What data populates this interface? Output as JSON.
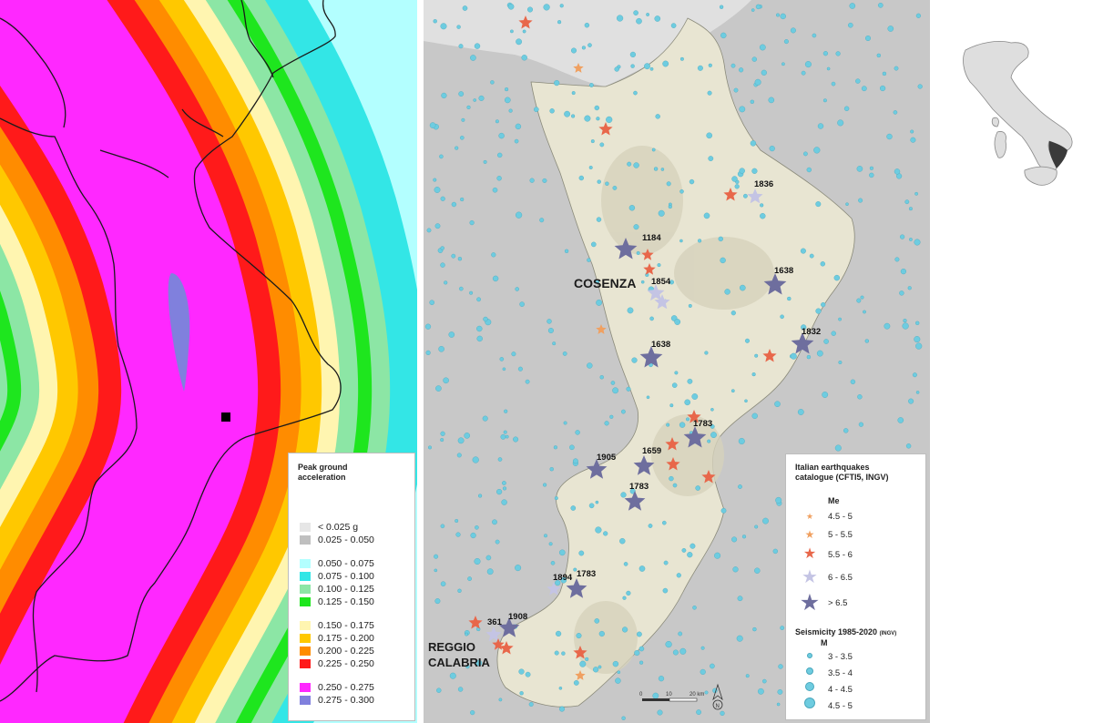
{
  "hazard_map": {
    "legend": {
      "title_line1": "Peak ground",
      "title_line2": "acceleration",
      "classes": [
        {
          "label": "< 0.025 g",
          "color": "#e6e6e6"
        },
        {
          "label": "0.025 - 0.050",
          "color": "#bfbfbf"
        },
        {
          "label": "0.050 - 0.075",
          "color": "#b3ffff"
        },
        {
          "label": "0.075 - 0.100",
          "color": "#33e6e6"
        },
        {
          "label": "0.100 - 0.125",
          "color": "#8ce6a5"
        },
        {
          "label": "0.125 - 0.150",
          "color": "#1ee61e"
        },
        {
          "label": "0.150 - 0.175",
          "color": "#fff5b0"
        },
        {
          "label": "0.175 - 0.200",
          "color": "#ffc800"
        },
        {
          "label": "0.200 - 0.225",
          "color": "#ff8c00"
        },
        {
          "label": "0.225 - 0.250",
          "color": "#ff1a1a"
        },
        {
          "label": "0.250 - 0.275",
          "color": "#ff28ff"
        },
        {
          "label": "0.275 - 0.300",
          "color": "#8080dd"
        }
      ]
    }
  },
  "earthquake_map": {
    "cities": [
      {
        "name": "COSENZA"
      },
      {
        "name": "REGGIO"
      },
      {
        "name": "CALABRIA"
      }
    ],
    "event_years": [
      "1836",
      "1184",
      "1854",
      "1638",
      "1832",
      "1638",
      "1783",
      "1905",
      "1659",
      "1783",
      "1894",
      "1783",
      "361",
      "1908"
    ],
    "legend": {
      "title_line1": "Italian earthquakes",
      "title_line2": "catalogue (CFTI5, INGV)",
      "mag_header": "Me",
      "magnitude_classes": [
        {
          "label": "4.5 - 5",
          "color": "#f0a060"
        },
        {
          "label": "5 - 5.5",
          "color": "#f0a060"
        },
        {
          "label": "5.5 - 6",
          "color": "#e8674a"
        },
        {
          "label": "6 - 6.5",
          "color": "#c4c4e4"
        },
        {
          "label": "> 6.5",
          "color": "#6e6e9e"
        }
      ],
      "seismicity_title": "Seismicity 1985-2020",
      "seismicity_source": "(INGV)",
      "seismicity_header": "M",
      "seismicity_classes": [
        {
          "label": "3 - 3.5"
        },
        {
          "label": "3.5 - 4"
        },
        {
          "label": "4 - 4.5"
        },
        {
          "label": "4.5 - 5"
        }
      ]
    },
    "scale_bar": {
      "ticks": [
        "0",
        "10",
        "20 km"
      ]
    },
    "north_arrow": "N"
  },
  "colors": {
    "sea": "#c8c8c8",
    "land": "#e8e5d2",
    "seismicity": "#6ecce0"
  }
}
